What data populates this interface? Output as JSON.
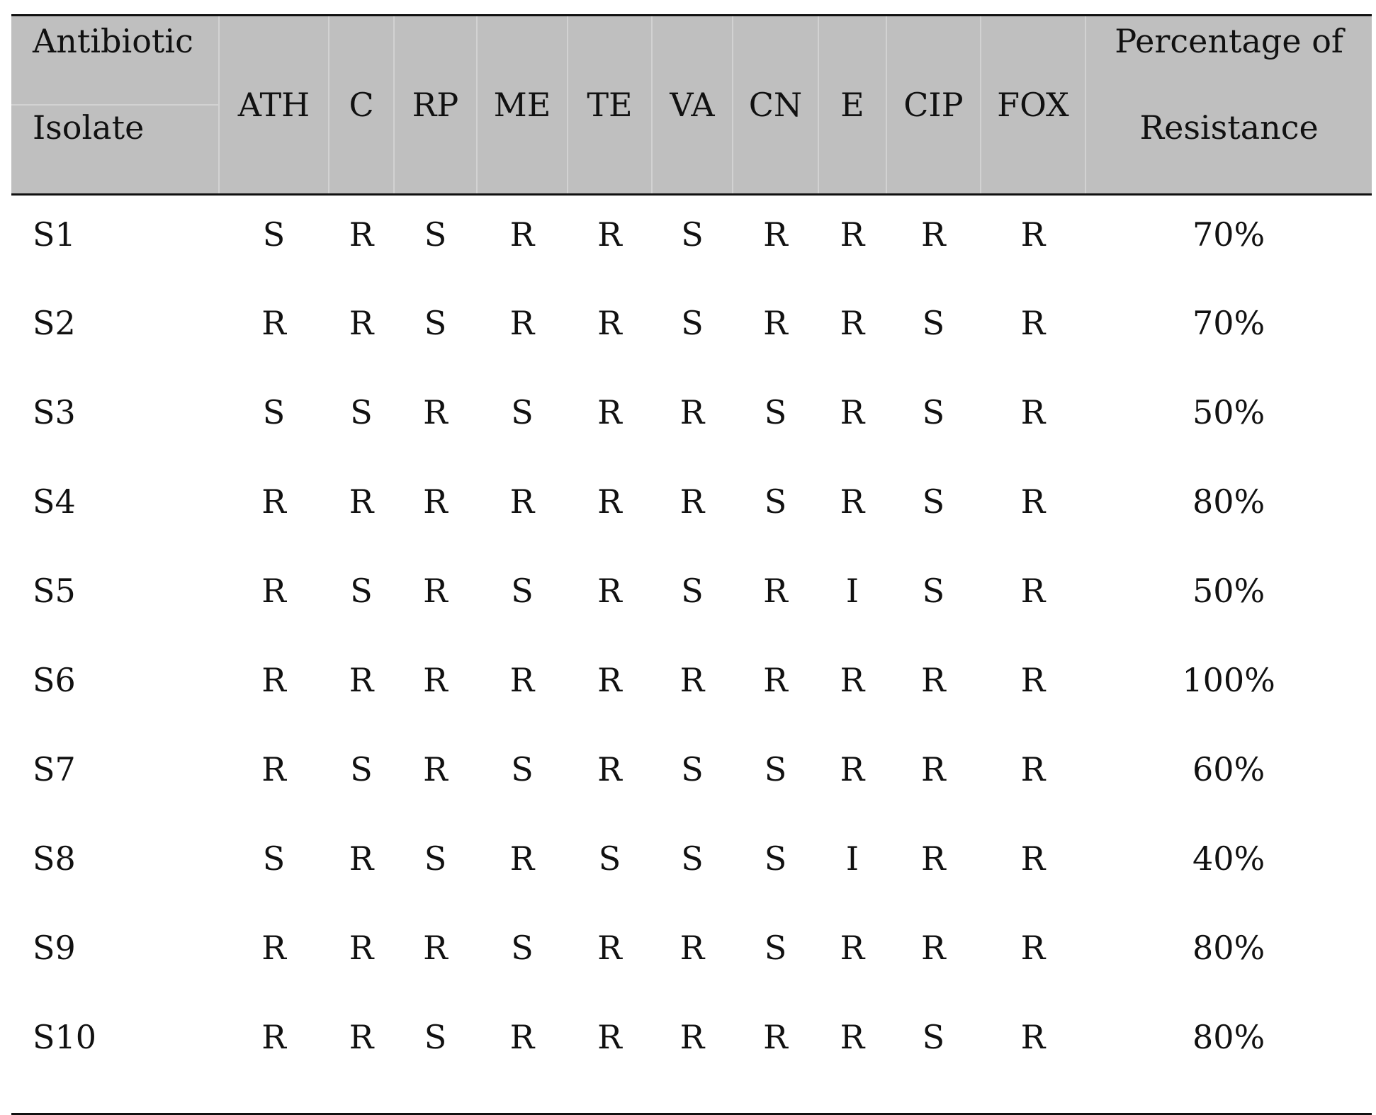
{
  "table": {
    "corner_top": "Antibiotic",
    "corner_bottom": "Isolate",
    "antibiotics": [
      "ATH",
      "C",
      "RP",
      "ME",
      "TE",
      "VA",
      "CN",
      "E",
      "CIP",
      "FOX"
    ],
    "pct_header_line1": "Percentage of",
    "pct_header_line2": "Resistance",
    "rows": [
      {
        "isolate": "S1",
        "results": [
          "S",
          "R",
          "S",
          "R",
          "R",
          "S",
          "R",
          "R",
          "R",
          "R"
        ],
        "pct": "70%"
      },
      {
        "isolate": "S2",
        "results": [
          "R",
          "R",
          "S",
          "R",
          "R",
          "S",
          "R",
          "R",
          "S",
          "R"
        ],
        "pct": "70%"
      },
      {
        "isolate": "S3",
        "results": [
          "S",
          "S",
          "R",
          "S",
          "R",
          "R",
          "S",
          "R",
          "S",
          "R"
        ],
        "pct": "50%"
      },
      {
        "isolate": "S4",
        "results": [
          "R",
          "R",
          "R",
          "R",
          "R",
          "R",
          "S",
          "R",
          "S",
          "R"
        ],
        "pct": "80%"
      },
      {
        "isolate": "S5",
        "results": [
          "R",
          "S",
          "R",
          "S",
          "R",
          "S",
          "R",
          "I",
          "S",
          "R"
        ],
        "pct": "50%"
      },
      {
        "isolate": "S6",
        "results": [
          "R",
          "R",
          "R",
          "R",
          "R",
          "R",
          "R",
          "R",
          "R",
          "R"
        ],
        "pct": "100%"
      },
      {
        "isolate": "S7",
        "results": [
          "R",
          "S",
          "R",
          "S",
          "R",
          "S",
          "S",
          "R",
          "R",
          "R"
        ],
        "pct": "60%"
      },
      {
        "isolate": "S8",
        "results": [
          "S",
          "R",
          "S",
          "R",
          "S",
          "S",
          "S",
          "I",
          "R",
          "R"
        ],
        "pct": "40%"
      },
      {
        "isolate": "S9",
        "results": [
          "R",
          "R",
          "R",
          "S",
          "R",
          "R",
          "S",
          "R",
          "R",
          "R"
        ],
        "pct": "80%"
      },
      {
        "isolate": "S10",
        "results": [
          "R",
          "R",
          "S",
          "R",
          "R",
          "R",
          "R",
          "R",
          "S",
          "R"
        ],
        "pct": "80%"
      }
    ]
  }
}
